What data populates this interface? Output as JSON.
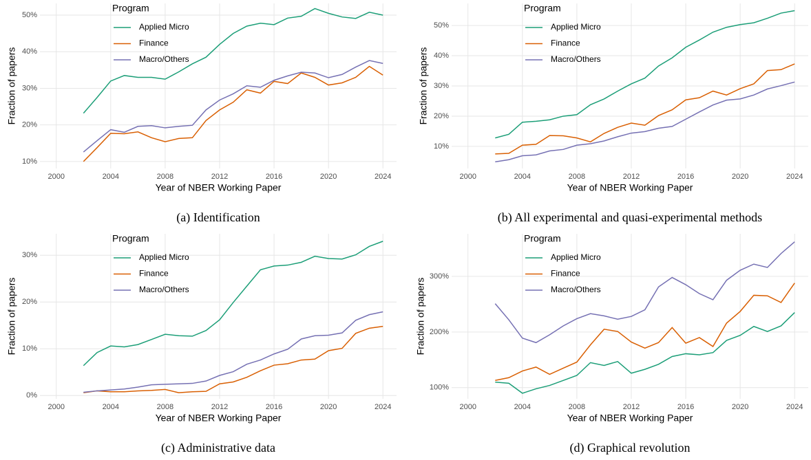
{
  "chart_data": [
    {
      "type": "line",
      "caption": "(a) Identification",
      "xlabel": "Year of NBER Working Paper",
      "ylabel": "Fraction of papers",
      "legend_title": "Program",
      "legend": "top-left",
      "grid": true,
      "x": [
        2002,
        2003,
        2004,
        2005,
        2006,
        2007,
        2008,
        2009,
        2010,
        2011,
        2012,
        2013,
        2014,
        2015,
        2016,
        2017,
        2018,
        2019,
        2020,
        2021,
        2022,
        2023,
        2024
      ],
      "xlim": [
        1998.8,
        2025
      ],
      "xticks": [
        2000,
        2004,
        2008,
        2012,
        2016,
        2020,
        2024
      ],
      "ylim": [
        8.1,
        53.2
      ],
      "yticks": [
        {
          "value": 10,
          "label": "10%"
        },
        {
          "value": 20,
          "label": "20%"
        },
        {
          "value": 30,
          "label": "30%"
        },
        {
          "value": 40,
          "label": "40%"
        },
        {
          "value": 50,
          "label": "50%"
        }
      ],
      "series": [
        {
          "name": "Applied Micro",
          "color": "#1b9e77",
          "values": [
            23.2,
            27.5,
            32,
            33.5,
            33,
            33,
            32.5,
            34.5,
            36.7,
            38.5,
            42,
            45,
            47,
            47.8,
            47.4,
            49.2,
            49.7,
            51.8,
            50.5,
            49.5,
            49.1,
            50.8,
            50
          ]
        },
        {
          "name": "Finance",
          "color": "#d95f02",
          "values": [
            10,
            13.8,
            17.7,
            17.6,
            18.1,
            16.5,
            15.4,
            16.3,
            16.5,
            21.2,
            24.1,
            26.2,
            29.6,
            28.7,
            31.9,
            31.3,
            34.2,
            33,
            30.9,
            31.5,
            33,
            36,
            33.6
          ]
        },
        {
          "name": "Macro/Others",
          "color": "#7570b3",
          "values": [
            12.6,
            15.7,
            18.7,
            18,
            19.6,
            19.8,
            19.2,
            19.6,
            19.9,
            24.1,
            26.8,
            28.5,
            30.7,
            30.3,
            32.2,
            33.4,
            34.4,
            34.2,
            32.9,
            33.8,
            35.8,
            37.6,
            36.8
          ]
        }
      ]
    },
    {
      "type": "line",
      "caption": "(b) All experimental and quasi-experimental methods",
      "xlabel": "Year of NBER Working Paper",
      "ylabel": "Fraction of papers",
      "legend_title": "Program",
      "legend": "top-left",
      "grid": true,
      "x": [
        2002,
        2003,
        2004,
        2005,
        2006,
        2007,
        2008,
        2009,
        2010,
        2011,
        2012,
        2013,
        2014,
        2015,
        2016,
        2017,
        2018,
        2019,
        2020,
        2021,
        2022,
        2023,
        2024
      ],
      "xlim": [
        1998.8,
        2025
      ],
      "xticks": [
        2000,
        2004,
        2008,
        2012,
        2016,
        2020,
        2024
      ],
      "ylim": [
        2.7,
        57.3
      ],
      "yticks": [
        {
          "value": 10,
          "label": "10%"
        },
        {
          "value": 20,
          "label": "20%"
        },
        {
          "value": 30,
          "label": "30%"
        },
        {
          "value": 40,
          "label": "40%"
        },
        {
          "value": 50,
          "label": "50%"
        }
      ],
      "series": [
        {
          "name": "Applied Micro",
          "color": "#1b9e77",
          "values": [
            12.8,
            14,
            18,
            18.3,
            18.8,
            20,
            20.5,
            23.8,
            25.7,
            28.3,
            30.7,
            32.6,
            36.6,
            39.3,
            42.8,
            45.2,
            47.8,
            49.4,
            50.3,
            50.9,
            52.4,
            54.1,
            54.9
          ]
        },
        {
          "name": "Finance",
          "color": "#d95f02",
          "values": [
            7.5,
            7.7,
            10.4,
            10.7,
            13.6,
            13.5,
            12.8,
            11.5,
            14.3,
            16.3,
            17.7,
            17,
            20.2,
            22.1,
            25.4,
            26.1,
            28.3,
            27,
            29.1,
            30.7,
            35.1,
            35.4,
            37.3
          ]
        },
        {
          "name": "Macro/Others",
          "color": "#7570b3",
          "values": [
            4.9,
            5.6,
            6.9,
            7.2,
            8.5,
            9,
            10.4,
            10.9,
            11.8,
            13.2,
            14.4,
            14.9,
            16,
            16.6,
            19,
            21.4,
            23.7,
            25.3,
            25.7,
            27,
            29,
            30.1,
            31.3
          ]
        }
      ]
    },
    {
      "type": "line",
      "caption": "(c) Administrative data",
      "xlabel": "Year of NBER Working Paper",
      "ylabel": "Fraction of papers",
      "legend_title": "Program",
      "legend": "top-left",
      "grid": true,
      "x": [
        2002,
        2003,
        2004,
        2005,
        2006,
        2007,
        2008,
        2009,
        2010,
        2011,
        2012,
        2013,
        2014,
        2015,
        2016,
        2017,
        2018,
        2019,
        2020,
        2021,
        2022,
        2023,
        2024
      ],
      "xlim": [
        1998.8,
        2025
      ],
      "xticks": [
        2000,
        2004,
        2008,
        2012,
        2016,
        2020,
        2024
      ],
      "ylim": [
        -0.7,
        34.6
      ],
      "yticks": [
        {
          "value": 0,
          "label": "0%"
        },
        {
          "value": 10,
          "label": "10%"
        },
        {
          "value": 20,
          "label": "20%"
        },
        {
          "value": 30,
          "label": "30%"
        }
      ],
      "series": [
        {
          "name": "Applied Micro",
          "color": "#1b9e77",
          "values": [
            6.4,
            9.2,
            10.6,
            10.4,
            10.9,
            12,
            13.1,
            12.8,
            12.7,
            13.9,
            16.2,
            19.9,
            23.4,
            26.9,
            27.7,
            27.9,
            28.5,
            29.8,
            29.3,
            29.2,
            30.1,
            31.9,
            33
          ]
        },
        {
          "name": "Finance",
          "color": "#d95f02",
          "values": [
            0.6,
            1,
            0.8,
            0.8,
            1,
            1.1,
            1.3,
            0.6,
            0.8,
            0.9,
            2.5,
            2.9,
            3.9,
            5.3,
            6.5,
            6.8,
            7.6,
            7.8,
            9.6,
            10.1,
            13.3,
            14.4,
            14.8
          ]
        },
        {
          "name": "Macro/Others",
          "color": "#7570b3",
          "values": [
            0.7,
            1,
            1.2,
            1.4,
            1.8,
            2.3,
            2.4,
            2.5,
            2.6,
            3.1,
            4.3,
            5.1,
            6.7,
            7.6,
            8.9,
            9.9,
            12.1,
            12.8,
            12.9,
            13.4,
            16.1,
            17.3,
            17.9
          ]
        }
      ]
    },
    {
      "type": "line",
      "caption": "(d) Graphical revolution",
      "xlabel": "Year of NBER Working Paper",
      "ylabel": "Fraction of papers",
      "legend_title": "Program",
      "legend": "top-left",
      "grid": true,
      "x": [
        2002,
        2003,
        2004,
        2005,
        2006,
        2007,
        2008,
        2009,
        2010,
        2011,
        2012,
        2013,
        2014,
        2015,
        2016,
        2017,
        2018,
        2019,
        2020,
        2021,
        2022,
        2023,
        2024
      ],
      "xlim": [
        1998.8,
        2025
      ],
      "xticks": [
        2000,
        2004,
        2008,
        2012,
        2016,
        2020,
        2024
      ],
      "ylim": [
        80,
        376.5
      ],
      "yticks": [
        {
          "value": 100,
          "label": "100%"
        },
        {
          "value": 200,
          "label": "200%"
        },
        {
          "value": 300,
          "label": "300%"
        }
      ],
      "series": [
        {
          "name": "Applied Micro",
          "color": "#1b9e77",
          "values": [
            110,
            108,
            90,
            98,
            104,
            113,
            122,
            145,
            140,
            147,
            126,
            133,
            142,
            156,
            161,
            159,
            163,
            185,
            194,
            210,
            201,
            211,
            235
          ]
        },
        {
          "name": "Finance",
          "color": "#d95f02",
          "values": [
            113,
            118,
            130,
            137,
            124,
            135,
            146,
            177,
            205,
            201,
            182,
            171,
            181,
            208,
            180,
            190,
            174,
            216,
            237,
            266,
            265,
            253,
            288
          ]
        },
        {
          "name": "Macro/Others",
          "color": "#7570b3",
          "values": [
            251,
            222,
            189,
            181,
            195,
            211,
            224,
            233,
            229,
            223,
            228,
            240,
            281,
            298,
            285,
            269,
            258,
            293,
            311,
            322,
            316,
            341,
            362
          ]
        }
      ]
    }
  ]
}
